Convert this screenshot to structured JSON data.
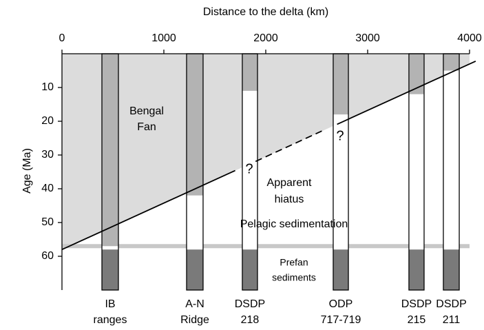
{
  "chart_data": {
    "type": "borehole-section",
    "x_label": "Distance to the delta (km)",
    "y_label": "Age (Ma)",
    "xlim": [
      0,
      4000
    ],
    "xticks": [
      0,
      1000,
      2000,
      3000,
      4000
    ],
    "ylim": [
      0,
      70
    ],
    "yticks": [
      10,
      20,
      30,
      40,
      50,
      60
    ],
    "y_inverted": true,
    "fan_color": "#dcdcdc",
    "column_fan_color": "#b3b3b3",
    "prefan_color": "#7a7a7a",
    "band_color": "#c8c8c8",
    "fan_base": {
      "x": [
        0,
        4000
      ],
      "y": [
        58,
        3
      ]
    },
    "fan_base_segments": [
      {
        "x": [
          0,
          1700
        ],
        "y": [
          58,
          34.6
        ],
        "style": "solid"
      },
      {
        "x": [
          1900,
          2550
        ],
        "y": [
          31.9,
          22.9
        ],
        "style": "dashed"
      },
      {
        "x": [
          2700,
          4060
        ],
        "y": [
          20.9,
          2.2
        ],
        "style": "solid"
      }
    ],
    "pelagic_band_age": 57,
    "prefan_top": 58,
    "columns": [
      {
        "label": [
          "IB",
          "ranges"
        ],
        "x": [
          392,
          554
        ],
        "fan_base": 57
      },
      {
        "label": [
          "A-N",
          "Ridge"
        ],
        "x": [
          1223,
          1385
        ],
        "fan_base": 42
      },
      {
        "label": [
          "DSDP",
          "218"
        ],
        "x": [
          1770,
          1919
        ],
        "fan_base": 11
      },
      {
        "label": [
          "ODP",
          "717-719"
        ],
        "x": [
          2662,
          2811
        ],
        "fan_base": 18
      },
      {
        "label": [
          "DSDP",
          "215"
        ],
        "x": [
          3405,
          3554
        ],
        "fan_base": 12
      },
      {
        "label": [
          "DSDP",
          "211"
        ],
        "x": [
          3743,
          3899
        ],
        "fan_base": 5
      }
    ],
    "annotations": {
      "fan": [
        "Bengal",
        "Fan"
      ],
      "question": "?",
      "hiatus": [
        "Apparent",
        "hiatus"
      ],
      "pelagic": "Pelagic sedimentation",
      "prefan": [
        "Prefan",
        "sediments"
      ]
    }
  }
}
